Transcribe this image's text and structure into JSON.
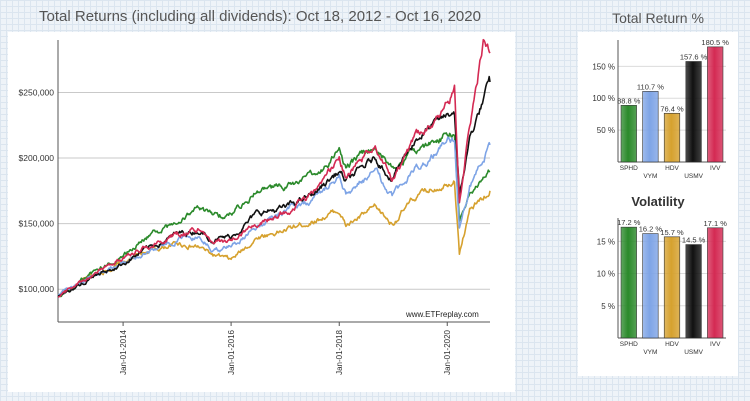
{
  "titles": {
    "main": "Total Returns (including all dividends): Oct 18, 2012 - Oct 16, 2020",
    "returns": "Total Return %",
    "volatility": "Volatility",
    "watermark": "www.ETFreplay.com"
  },
  "chart_data": [
    {
      "type": "line",
      "title": "Total Returns (including all dividends): Oct 18, 2012 - Oct 16, 2020",
      "x_start": "2012-10-18",
      "x_end": "2020-10-16",
      "x_ticks": [
        "Jan-01-2014",
        "Jan-01-2016",
        "Jan-01-2018",
        "Jan-01-2020"
      ],
      "y_ticks": [
        "$100,000",
        "$150,000",
        "$200,000",
        "$250,000"
      ],
      "ylim": [
        75000,
        290000
      ],
      "grid": true,
      "series": [
        {
          "color": "#d6a12e",
          "points": [
            [
              "2012-10-18",
              95000
            ],
            [
              "2013-06-01",
              110000
            ],
            [
              "2014-01-01",
              120000
            ],
            [
              "2014-06-01",
              128000
            ],
            [
              "2015-01-01",
              135000
            ],
            [
              "2015-06-01",
              132000
            ],
            [
              "2015-09-01",
              126000
            ],
            [
              "2016-01-01",
              122000
            ],
            [
              "2016-07-01",
              140000
            ],
            [
              "2017-01-01",
              145000
            ],
            [
              "2017-07-01",
              152000
            ],
            [
              "2018-01-01",
              160000
            ],
            [
              "2018-02-15",
              148000
            ],
            [
              "2018-09-01",
              162000
            ],
            [
              "2018-12-24",
              150000
            ],
            [
              "2019-06-01",
              170000
            ],
            [
              "2019-12-31",
              182000
            ],
            [
              "2020-02-19",
              185000
            ],
            [
              "2020-03-23",
              128000
            ],
            [
              "2020-06-01",
              160000
            ],
            [
              "2020-10-16",
              175000
            ]
          ]
        },
        {
          "color": "#2b8a2b",
          "points": [
            [
              "2012-10-18",
              95000
            ],
            [
              "2013-06-01",
              112000
            ],
            [
              "2014-01-01",
              125000
            ],
            [
              "2014-06-01",
              140000
            ],
            [
              "2015-01-01",
              150000
            ],
            [
              "2015-05-01",
              162000
            ],
            [
              "2015-09-01",
              155000
            ],
            [
              "2016-01-01",
              158000
            ],
            [
              "2016-07-01",
              175000
            ],
            [
              "2017-01-01",
              178000
            ],
            [
              "2017-07-01",
              185000
            ],
            [
              "2018-01-01",
              205000
            ],
            [
              "2018-02-15",
              192000
            ],
            [
              "2018-09-01",
              210000
            ],
            [
              "2018-12-24",
              192000
            ],
            [
              "2019-06-01",
              205000
            ],
            [
              "2019-12-31",
              218000
            ],
            [
              "2020-02-19",
              220000
            ],
            [
              "2020-03-23",
              152000
            ],
            [
              "2020-06-01",
              172000
            ],
            [
              "2020-10-16",
              190000
            ]
          ]
        },
        {
          "color": "#7ea4e6",
          "points": [
            [
              "2012-10-18",
              95000
            ],
            [
              "2013-06-01",
              110000
            ],
            [
              "2014-01-01",
              120000
            ],
            [
              "2014-06-01",
              128000
            ],
            [
              "2015-01-01",
              138000
            ],
            [
              "2015-06-01",
              140000
            ],
            [
              "2015-09-01",
              130000
            ],
            [
              "2016-01-01",
              132000
            ],
            [
              "2016-07-01",
              150000
            ],
            [
              "2017-01-01",
              160000
            ],
            [
              "2017-07-01",
              168000
            ],
            [
              "2018-01-01",
              185000
            ],
            [
              "2018-02-15",
              172000
            ],
            [
              "2018-09-01",
              190000
            ],
            [
              "2018-12-24",
              170000
            ],
            [
              "2019-06-01",
              192000
            ],
            [
              "2019-12-31",
              212000
            ],
            [
              "2020-02-19",
              215000
            ],
            [
              "2020-03-23",
              148000
            ],
            [
              "2020-06-01",
              180000
            ],
            [
              "2020-10-16",
              210000
            ]
          ]
        },
        {
          "color": "#111111",
          "points": [
            [
              "2012-10-18",
              95000
            ],
            [
              "2013-06-01",
              108000
            ],
            [
              "2014-01-01",
              120000
            ],
            [
              "2014-06-01",
              130000
            ],
            [
              "2015-01-01",
              142000
            ],
            [
              "2015-06-01",
              145000
            ],
            [
              "2015-09-01",
              138000
            ],
            [
              "2016-01-01",
              140000
            ],
            [
              "2016-07-01",
              158000
            ],
            [
              "2017-01-01",
              162000
            ],
            [
              "2017-07-01",
              172000
            ],
            [
              "2018-01-01",
              190000
            ],
            [
              "2018-02-15",
              182000
            ],
            [
              "2018-09-01",
              200000
            ],
            [
              "2018-12-24",
              185000
            ],
            [
              "2019-06-01",
              215000
            ],
            [
              "2019-12-31",
              232000
            ],
            [
              "2020-02-19",
              236000
            ],
            [
              "2020-03-23",
              170000
            ],
            [
              "2020-06-01",
              215000
            ],
            [
              "2020-10-16",
              258000
            ]
          ]
        },
        {
          "color": "#d42a53",
          "points": [
            [
              "2012-10-18",
              95000
            ],
            [
              "2013-06-01",
              110000
            ],
            [
              "2014-01-01",
              125000
            ],
            [
              "2014-06-01",
              132000
            ],
            [
              "2015-01-01",
              142000
            ],
            [
              "2015-06-01",
              146000
            ],
            [
              "2015-09-01",
              135000
            ],
            [
              "2016-01-01",
              137000
            ],
            [
              "2016-07-01",
              150000
            ],
            [
              "2017-01-01",
              158000
            ],
            [
              "2017-07-01",
              172000
            ],
            [
              "2018-01-01",
              200000
            ],
            [
              "2018-02-15",
              185000
            ],
            [
              "2018-09-01",
              210000
            ],
            [
              "2018-12-24",
              183000
            ],
            [
              "2019-06-01",
              215000
            ],
            [
              "2019-12-31",
              240000
            ],
            [
              "2020-02-19",
              252000
            ],
            [
              "2020-03-23",
              168000
            ],
            [
              "2020-06-01",
              225000
            ],
            [
              "2020-09-01",
              287000
            ],
            [
              "2020-10-16",
              280000
            ]
          ]
        }
      ]
    },
    {
      "type": "bar",
      "title": "Total Return %",
      "categories": [
        "SPHD",
        "VYM",
        "HDV",
        "USMV",
        "IVV"
      ],
      "values": [
        88.8,
        110.7,
        76.4,
        157.6,
        180.5
      ],
      "value_labels": [
        "88.8 %",
        "110.7 %",
        "76.4 %",
        "157.6 %",
        "180.5 %"
      ],
      "colors": [
        "#2b8a2b",
        "#7ea4e6",
        "#d6a12e",
        "#111111",
        "#d42a53"
      ],
      "y_ticks": [
        "50 %",
        "100 %",
        "150 %"
      ],
      "ylim": [
        0,
        185
      ]
    },
    {
      "type": "bar",
      "title": "Volatility",
      "categories": [
        "SPHD",
        "VYM",
        "HDV",
        "USMV",
        "IVV"
      ],
      "values": [
        17.2,
        16.2,
        15.7,
        14.5,
        17.1
      ],
      "value_labels": [
        "17.2 %",
        "16.2 %",
        "15.7 %",
        "14.5 %",
        "17.1 %"
      ],
      "colors": [
        "#2b8a2b",
        "#7ea4e6",
        "#d6a12e",
        "#111111",
        "#d42a53"
      ],
      "y_ticks": [
        "5 %",
        "10 %",
        "15 %"
      ],
      "ylim": [
        0,
        18
      ]
    }
  ]
}
